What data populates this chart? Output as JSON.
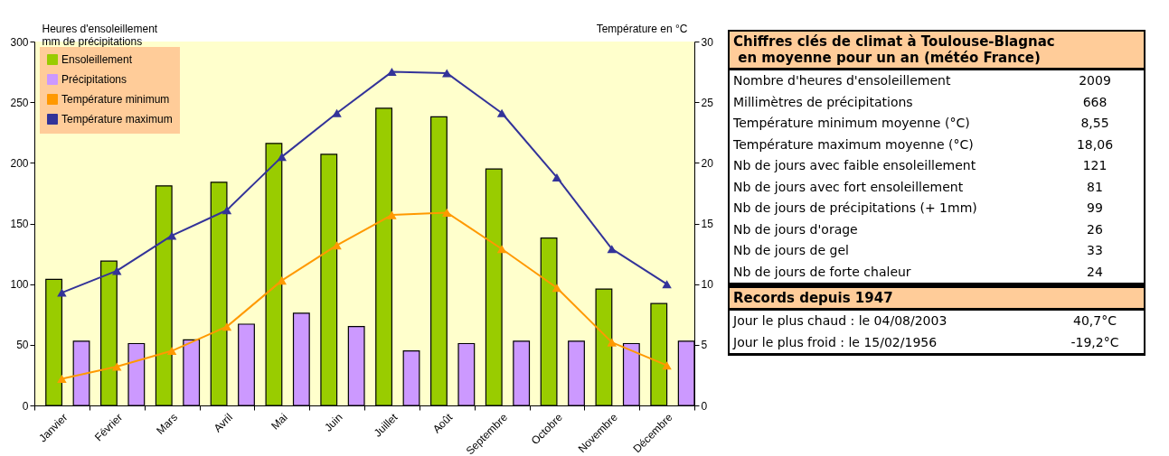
{
  "chart_data": [
    {
      "type": "bar",
      "categories": [
        "Janvier",
        "Février",
        "Mars",
        "Avril",
        "Mai",
        "Juin",
        "Juillet",
        "Août",
        "Septembre",
        "Octobre",
        "Novembre",
        "Décembre"
      ],
      "ylabel": "Heures d'ensoleillement\nmm de précipitations",
      "y2label": "Température en °C",
      "ylim": [
        0,
        300
      ],
      "yticks": [
        0,
        50,
        100,
        150,
        200,
        250,
        300
      ],
      "y2lim": [
        0,
        30
      ],
      "y2ticks": [
        0,
        5,
        10,
        15,
        20,
        25,
        30
      ],
      "grid": false,
      "legend": "top left",
      "marker": "triangle",
      "series": [
        {
          "name": "Ensoleillement",
          "type": "bar",
          "color": "#99cc00",
          "values": [
            104,
            119,
            181,
            184,
            216,
            207,
            245,
            238,
            195,
            138,
            96,
            84
          ]
        },
        {
          "name": "Précipitations",
          "type": "bar",
          "color": "#cc99ff",
          "values": [
            53,
            51,
            54,
            67,
            76,
            65,
            45,
            51,
            53,
            53,
            51,
            53
          ]
        },
        {
          "name": "Température minimum",
          "type": "line",
          "axis": "y2",
          "color": "#ff9900",
          "values": [
            2.2,
            3.2,
            4.5,
            6.5,
            10.3,
            13.2,
            15.7,
            15.9,
            12.9,
            9.7,
            5.2,
            3.3
          ]
        },
        {
          "name": "Température maximum",
          "type": "line",
          "axis": "y2",
          "color": "#333399",
          "values": [
            9.3,
            11.1,
            14.0,
            16.1,
            20.5,
            24.1,
            27.5,
            27.4,
            24.1,
            18.8,
            12.9,
            10.0
          ]
        }
      ]
    },
    {
      "type": "other",
      "title": "Chiffres clés de climat à Toulouse-Blagnac\n en moyenne pour un an (météo France)",
      "categories": [
        "Nombre d'heures d'ensoleillement",
        "Millimètres de précipitations",
        "Température minimum moyenne (°C)",
        "Température maximum moyenne (°C)",
        "Nb de jours avec faible ensoleillement",
        "Nb de jours avec fort ensoleillement",
        "Nb de jours de précipitations (+ 1mm)",
        "Nb de jours d'orage",
        "Nb de jours de gel",
        "Nb de jours de forte chaleur"
      ],
      "value_labels": [
        "2009",
        "668",
        "8,55",
        "18,06",
        "121",
        "81",
        "99",
        "26",
        "33",
        "24"
      ]
    },
    {
      "type": "other",
      "title": "Records depuis 1947",
      "categories": [
        "Jour le plus chaud : le 04/08/2003",
        "Jour le plus froid : le 15/02/1956"
      ],
      "value_labels": [
        "40,7°C",
        "-19,2°C"
      ]
    }
  ]
}
